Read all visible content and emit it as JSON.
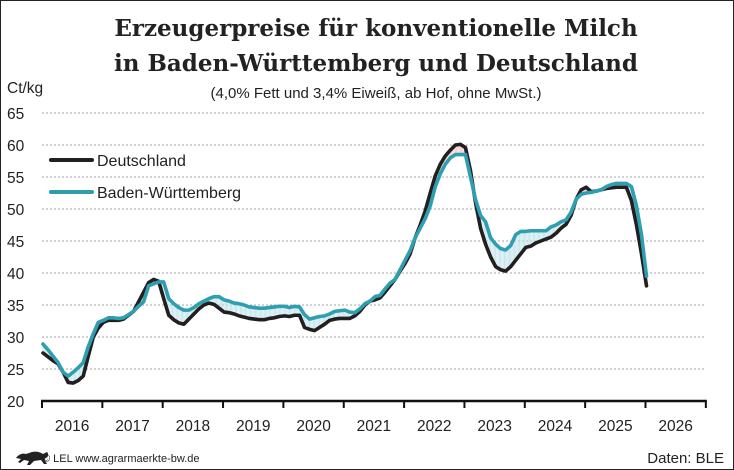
{
  "chart_data": {
    "type": "line",
    "title": "Erzeugerpreise für konventionelle Milch",
    "title_line2": "in Baden-Württemberg und Deutschland",
    "subtitle": "(4,0% Fett und 3,4% Eiweiß, ab Hof, ohne MwSt.)",
    "ylabel": "Ct/kg",
    "xlabel": "",
    "ylim": [
      20,
      65
    ],
    "yticks": [
      "20",
      "25",
      "30",
      "35",
      "40",
      "45",
      "50",
      "55",
      "60",
      "65"
    ],
    "xticks": [
      "2016",
      "2017",
      "2018",
      "2019",
      "2020",
      "2021",
      "2022",
      "2023",
      "2024",
      "2025",
      "2026"
    ],
    "xlim": [
      "2016-01",
      "2026-12"
    ],
    "x_start": "2016-01",
    "x_frequency": "monthly",
    "grid": "horizontal dashed",
    "legend_position": "top-left",
    "series": [
      {
        "name": "Deutschland",
        "color": "#231f20",
        "values": [
          27.5,
          26.9,
          26.3,
          25.8,
          24.5,
          22.9,
          22.8,
          23.2,
          23.9,
          27.0,
          30.0,
          31.4,
          32.3,
          32.6,
          32.6,
          32.6,
          32.8,
          33.4,
          34.0,
          35.5,
          37.0,
          38.5,
          39.0,
          38.7,
          36.0,
          33.4,
          32.7,
          32.2,
          32.0,
          32.8,
          33.6,
          34.4,
          35.0,
          35.3,
          35.1,
          34.5,
          33.9,
          33.8,
          33.6,
          33.3,
          33.1,
          32.9,
          32.8,
          32.7,
          32.7,
          32.9,
          33.0,
          33.2,
          33.3,
          33.2,
          33.4,
          33.4,
          31.5,
          31.2,
          31.0,
          31.5,
          32.0,
          32.6,
          32.8,
          32.9,
          32.9,
          32.9,
          33.3,
          34.0,
          35.0,
          35.6,
          35.8,
          36.1,
          37.0,
          38.0,
          39.0,
          40.3,
          41.5,
          43.0,
          45.5,
          47.5,
          49.7,
          52.5,
          55.2,
          57.0,
          58.3,
          59.2,
          60.0,
          60.1,
          59.6,
          56.0,
          51.0,
          47.0,
          44.5,
          42.5,
          41.0,
          40.5,
          40.3,
          41.0,
          42.0,
          43.0,
          44.0,
          44.2,
          44.7,
          45.0,
          45.3,
          45.6,
          46.2,
          47.0,
          47.6,
          49.0,
          51.5,
          53.0,
          53.4,
          52.7,
          52.8,
          53.0,
          53.2,
          53.3,
          53.4,
          53.4,
          53.4,
          51.3,
          47.5,
          43.0,
          38.0
        ]
      },
      {
        "name": "Baden-Württemberg",
        "color": "#2e9fb0",
        "values": [
          28.9,
          28.0,
          27.0,
          26.0,
          24.5,
          23.9,
          24.5,
          25.2,
          26.0,
          28.5,
          30.5,
          32.3,
          32.6,
          33.0,
          33.0,
          32.9,
          33.0,
          33.5,
          34.0,
          34.8,
          35.5,
          38.0,
          38.3,
          38.6,
          38.6,
          36.0,
          35.2,
          34.6,
          34.2,
          34.2,
          34.6,
          35.2,
          35.6,
          36.0,
          36.3,
          36.3,
          35.8,
          35.6,
          35.3,
          35.2,
          35.0,
          34.7,
          34.6,
          34.5,
          34.5,
          34.6,
          34.7,
          34.8,
          34.8,
          34.6,
          34.8,
          34.7,
          33.5,
          32.8,
          33.0,
          33.2,
          33.3,
          33.6,
          34.0,
          34.1,
          34.2,
          33.9,
          33.8,
          34.4,
          35.2,
          35.6,
          36.3,
          36.5,
          37.5,
          38.4,
          39.0,
          40.5,
          42.0,
          43.5,
          45.5,
          47.0,
          48.5,
          50.5,
          53.5,
          55.5,
          57.0,
          58.0,
          58.5,
          58.5,
          58.5,
          55.0,
          51.5,
          49.0,
          48.0,
          45.5,
          44.5,
          43.8,
          43.6,
          44.3,
          46.0,
          46.5,
          46.5,
          46.6,
          46.6,
          46.6,
          46.6,
          47.2,
          47.5,
          48.0,
          48.3,
          49.5,
          51.5,
          52.3,
          52.5,
          52.6,
          52.8,
          53.0,
          53.5,
          53.8,
          54.0,
          54.0,
          54.0,
          53.5,
          50.5,
          46.0,
          39.5
        ]
      }
    ],
    "fill_between": {
      "above_color": "#bfe3ea",
      "below_color": "#f2c4c4"
    }
  },
  "footer": {
    "logo_icon": "lion-coat-of-arms-icon",
    "copyright": "© LEL www.agrarmaerkte-bw.de",
    "source": "Daten: BLE"
  }
}
